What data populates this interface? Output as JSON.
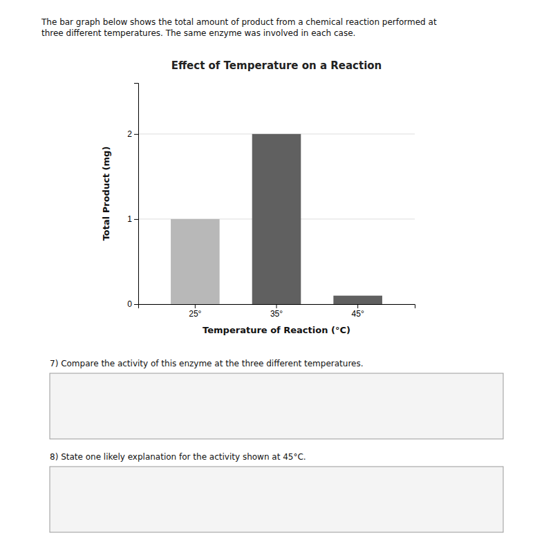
{
  "chart_data": {
    "type": "bar",
    "title": "Effect of Temperature on a Reaction",
    "xlabel": "Temperature of Reaction (°C)",
    "ylabel": "Total Product (mg)",
    "categories": [
      "25°",
      "35°",
      "45°"
    ],
    "values": [
      1.0,
      2.0,
      0.1
    ],
    "colors": [
      "#b8b8b8",
      "#606060",
      "#606060"
    ],
    "ylim": [
      0,
      2.6
    ],
    "yticks": [
      0,
      1,
      2
    ],
    "grid": true,
    "annotations": [
      "The bar graph below shows the total amount of product from a chemical reaction performed at\nthree different temperatures.  The same enzyme was involved in each case.",
      "7) Compare the activity of this enzyme at the three different temperatures.",
      "8) State one likely explanation for the activity shown at 45°C."
    ]
  }
}
